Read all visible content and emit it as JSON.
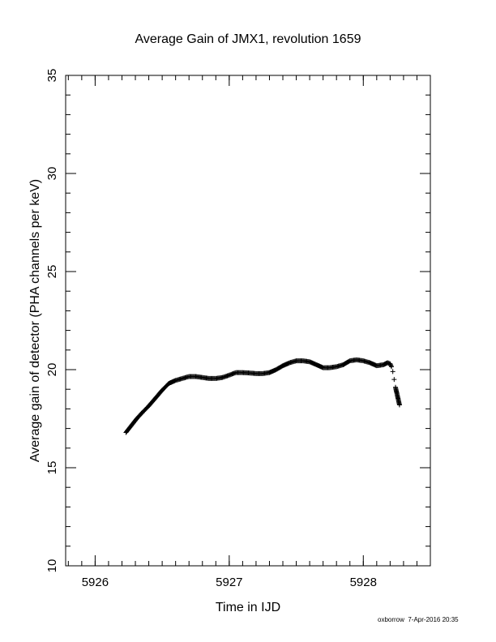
{
  "chart_data": {
    "type": "scatter",
    "title": "Average Gain of JMX1, revolution 1659",
    "xlabel": "Time in IJD",
    "ylabel": "Average gain of detector (PHA channels per keV)",
    "xlim": [
      5925.78,
      5928.5
    ],
    "ylim": [
      10,
      35
    ],
    "xticks": [
      5926,
      5927,
      5928
    ],
    "yticks": [
      10,
      15,
      20,
      25,
      30,
      35
    ],
    "x_minor_step": 0.1,
    "y_minor_step": 1,
    "grid": false,
    "marker": "+",
    "color": "#000000",
    "points": [
      [
        5926.23,
        16.8
      ],
      [
        5926.27,
        17.15
      ],
      [
        5926.31,
        17.5
      ],
      [
        5926.35,
        17.8
      ],
      [
        5926.4,
        18.15
      ],
      [
        5926.45,
        18.55
      ],
      [
        5926.5,
        18.95
      ],
      [
        5926.55,
        19.3
      ],
      [
        5926.6,
        19.45
      ],
      [
        5926.65,
        19.55
      ],
      [
        5926.7,
        19.65
      ],
      [
        5926.75,
        19.65
      ],
      [
        5926.8,
        19.6
      ],
      [
        5926.85,
        19.55
      ],
      [
        5926.9,
        19.55
      ],
      [
        5926.95,
        19.6
      ],
      [
        5927.0,
        19.72
      ],
      [
        5927.05,
        19.85
      ],
      [
        5927.1,
        19.85
      ],
      [
        5927.15,
        19.83
      ],
      [
        5927.2,
        19.8
      ],
      [
        5927.25,
        19.8
      ],
      [
        5927.3,
        19.85
      ],
      [
        5927.35,
        20.0
      ],
      [
        5927.4,
        20.2
      ],
      [
        5927.45,
        20.35
      ],
      [
        5927.5,
        20.45
      ],
      [
        5927.55,
        20.45
      ],
      [
        5927.6,
        20.4
      ],
      [
        5927.65,
        20.25
      ],
      [
        5927.7,
        20.1
      ],
      [
        5927.75,
        20.1
      ],
      [
        5927.8,
        20.15
      ],
      [
        5927.85,
        20.25
      ],
      [
        5927.9,
        20.45
      ],
      [
        5927.95,
        20.5
      ],
      [
        5928.0,
        20.45
      ],
      [
        5928.05,
        20.35
      ],
      [
        5928.1,
        20.2
      ],
      [
        5928.15,
        20.25
      ],
      [
        5928.18,
        20.35
      ],
      [
        5928.2,
        20.3
      ],
      [
        5928.21,
        20.15
      ],
      [
        5928.22,
        19.9
      ],
      [
        5928.23,
        19.5
      ],
      [
        5928.24,
        19.1
      ],
      [
        5928.27,
        18.2
      ]
    ]
  },
  "footer": {
    "user": "oxborrow",
    "timestamp": "7-Apr-2016 20:35"
  }
}
